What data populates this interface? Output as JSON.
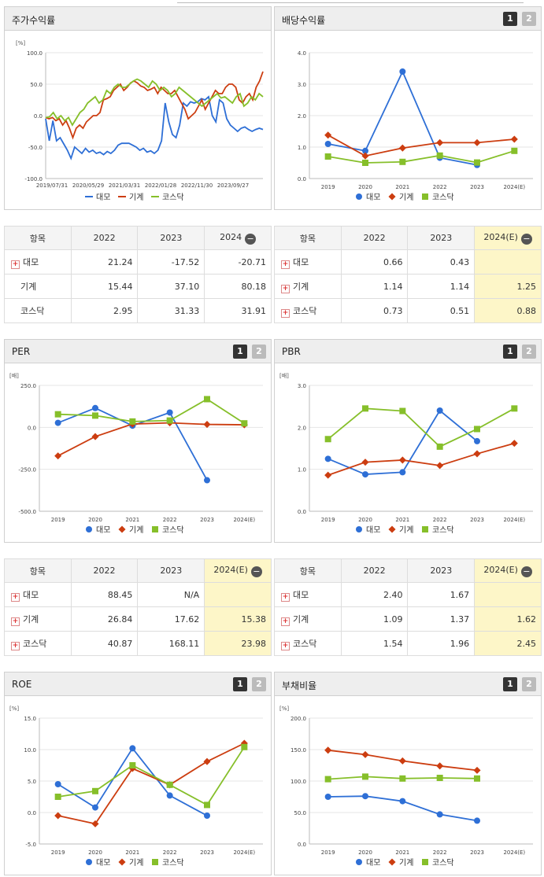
{
  "colors": {
    "series1": "#2e6fd6",
    "series2": "#cc3d10",
    "series3": "#86bf2a"
  },
  "legend": [
    "대모",
    "기계",
    "코스닥"
  ],
  "btns": {
    "b1": "1",
    "b2": "2"
  },
  "charts": [
    {
      "id": "stock",
      "title": "주가수익률",
      "unit": "[%]",
      "type": "line",
      "ticks": [
        "100.0",
        "50.0",
        "0.0",
        "-50.0",
        "-100.0"
      ],
      "ylim": [
        -100,
        100
      ],
      "xlabels": [
        "2019/07/31",
        "2020/05/29",
        "2021/03/31",
        "2022/01/28",
        "2022/11/30",
        "2023/09/27"
      ],
      "series": [
        {
          "name": "대모",
          "values": [
            -5,
            -40,
            -8,
            -40,
            -35,
            -45,
            -55,
            -68,
            -50,
            -55,
            -60,
            -52,
            -58,
            -55,
            -60,
            -58,
            -62,
            -57,
            -60,
            -55,
            -47,
            -44,
            -44,
            -44,
            -47,
            -50,
            -55,
            -52,
            -58,
            -56,
            -60,
            -55,
            -40,
            20,
            -10,
            -30,
            -35,
            -15,
            20,
            15,
            22,
            20,
            22,
            27,
            25,
            30,
            0,
            -10,
            25,
            20,
            -5,
            -15,
            -20,
            -25,
            -20,
            -18,
            -22,
            -25,
            -22,
            -20,
            -22
          ]
        },
        {
          "name": "기계",
          "values": [
            -3,
            -5,
            -3,
            -8,
            -5,
            -15,
            -8,
            -20,
            -35,
            -20,
            -15,
            -20,
            -10,
            -5,
            0,
            0,
            5,
            25,
            27,
            30,
            40,
            45,
            50,
            40,
            45,
            52,
            55,
            52,
            47,
            45,
            40,
            42,
            45,
            35,
            45,
            40,
            35,
            35,
            40,
            30,
            20,
            10,
            -5,
            0,
            5,
            15,
            25,
            10,
            20,
            30,
            40,
            35,
            35,
            45,
            50,
            50,
            45,
            25,
            20,
            30,
            35,
            25,
            45,
            55,
            70
          ]
        },
        {
          "name": "코스닥",
          "values": [
            -3,
            -2,
            5,
            -5,
            0,
            -8,
            -3,
            -15,
            -5,
            5,
            10,
            20,
            25,
            30,
            20,
            25,
            40,
            35,
            45,
            50,
            45,
            45,
            50,
            55,
            58,
            55,
            50,
            45,
            55,
            50,
            40,
            45,
            40,
            30,
            35,
            45,
            40,
            35,
            30,
            25,
            20,
            15,
            20,
            25,
            30,
            35,
            28,
            30,
            25,
            20,
            30,
            35,
            15,
            20,
            30,
            25,
            35,
            30
          ]
        }
      ]
    },
    {
      "id": "div",
      "title": "배당수익률",
      "unit": "",
      "type": "line",
      "ticks": [
        "4.0",
        "3.0",
        "2.0",
        "1.0",
        "0.0"
      ],
      "ylim": [
        0,
        4
      ],
      "categories": [
        "2019",
        "2020",
        "2021",
        "2022",
        "2023",
        "2024(E)"
      ],
      "series": [
        {
          "name": "대모",
          "values": [
            1.1,
            0.88,
            3.4,
            0.66,
            0.43,
            null
          ]
        },
        {
          "name": "기계",
          "values": [
            1.38,
            0.72,
            0.97,
            1.14,
            1.14,
            1.25
          ]
        },
        {
          "name": "코스닥",
          "values": [
            0.7,
            0.5,
            0.53,
            0.73,
            0.51,
            0.88
          ]
        }
      ]
    },
    {
      "id": "per",
      "title": "PER",
      "unit": "[배]",
      "type": "line",
      "ticks": [
        "250.0",
        "0.0",
        "-250.0",
        "-500.0"
      ],
      "ylim": [
        -500,
        250
      ],
      "categories": [
        "2019",
        "2020",
        "2021",
        "2022",
        "2023",
        "2024(E)"
      ],
      "series": [
        {
          "name": "대모",
          "values": [
            27,
            115,
            10,
            88.45,
            -315,
            null
          ]
        },
        {
          "name": "기계",
          "values": [
            -170,
            -55,
            20,
            26.84,
            17.62,
            15.38
          ]
        },
        {
          "name": "코스닥",
          "values": [
            78,
            70,
            35,
            40.87,
            168.11,
            23.98
          ]
        }
      ]
    },
    {
      "id": "pbr",
      "title": "PBR",
      "unit": "[배]",
      "type": "line",
      "ticks": [
        "3.0",
        "2.0",
        "1.0",
        "0.0"
      ],
      "ylim": [
        0,
        3
      ],
      "categories": [
        "2019",
        "2020",
        "2021",
        "2022",
        "2023",
        "2024(E)"
      ],
      "series": [
        {
          "name": "대모",
          "values": [
            1.25,
            0.88,
            0.93,
            2.4,
            1.67,
            null
          ]
        },
        {
          "name": "기계",
          "values": [
            0.86,
            1.17,
            1.22,
            1.09,
            1.37,
            1.62
          ]
        },
        {
          "name": "코스닥",
          "values": [
            1.72,
            2.45,
            2.39,
            1.54,
            1.96,
            2.45
          ]
        }
      ]
    },
    {
      "id": "roe",
      "title": "ROE",
      "unit": "[%]",
      "type": "line",
      "ticks": [
        "15.0",
        "10.0",
        "5.0",
        "0.0",
        "-5.0"
      ],
      "ylim": [
        -5,
        15
      ],
      "categories": [
        "2019",
        "2020",
        "2021",
        "2022",
        "2023",
        "2024(E)"
      ],
      "series": [
        {
          "name": "대모",
          "values": [
            4.5,
            0.8,
            10.2,
            2.7,
            -0.5,
            null
          ]
        },
        {
          "name": "기계",
          "values": [
            -0.5,
            -1.8,
            7.0,
            4.4,
            8.1,
            11.0
          ]
        },
        {
          "name": "코스닥",
          "values": [
            2.5,
            3.4,
            7.5,
            4.4,
            1.2,
            10.4
          ]
        }
      ]
    },
    {
      "id": "debt",
      "title": "부채비율",
      "unit": "[%]",
      "type": "line",
      "ticks": [
        "200.0",
        "150.0",
        "100.0",
        "50.0",
        "0.0"
      ],
      "ylim": [
        0,
        200
      ],
      "categories": [
        "2019",
        "2020",
        "2021",
        "2022",
        "2023",
        "2024(E)"
      ],
      "series": [
        {
          "name": "대모",
          "values": [
            75,
            76,
            68,
            47,
            37,
            null
          ]
        },
        {
          "name": "기계",
          "values": [
            149,
            142,
            132,
            124,
            117,
            null
          ]
        },
        {
          "name": "코스닥",
          "values": [
            103,
            107,
            104,
            105,
            104,
            null
          ]
        }
      ]
    }
  ],
  "tables": [
    {
      "head": [
        "항목",
        "2022",
        "2023",
        "2024"
      ],
      "estimated": false,
      "rows": [
        {
          "label": "대모",
          "plus": true,
          "vals": [
            "21.24",
            "-17.52",
            "-20.71"
          ]
        },
        {
          "label": "기계",
          "plus": false,
          "vals": [
            "15.44",
            "37.10",
            "80.18"
          ]
        },
        {
          "label": "코스닥",
          "plus": false,
          "vals": [
            "2.95",
            "31.33",
            "31.91"
          ]
        }
      ]
    },
    {
      "head": [
        "항목",
        "2022",
        "2023",
        "2024(E)"
      ],
      "estimated": true,
      "rows": [
        {
          "label": "대모",
          "plus": true,
          "vals": [
            "0.66",
            "0.43",
            ""
          ]
        },
        {
          "label": "기계",
          "plus": true,
          "vals": [
            "1.14",
            "1.14",
            "1.25"
          ]
        },
        {
          "label": "코스닥",
          "plus": true,
          "vals": [
            "0.73",
            "0.51",
            "0.88"
          ]
        }
      ]
    },
    {
      "head": [
        "항목",
        "2022",
        "2023",
        "2024(E)"
      ],
      "estimated": true,
      "rows": [
        {
          "label": "대모",
          "plus": true,
          "vals": [
            "88.45",
            "N/A",
            ""
          ]
        },
        {
          "label": "기계",
          "plus": true,
          "vals": [
            "26.84",
            "17.62",
            "15.38"
          ]
        },
        {
          "label": "코스닥",
          "plus": true,
          "vals": [
            "40.87",
            "168.11",
            "23.98"
          ]
        }
      ]
    },
    {
      "head": [
        "항목",
        "2022",
        "2023",
        "2024(E)"
      ],
      "estimated": true,
      "rows": [
        {
          "label": "대모",
          "plus": true,
          "vals": [
            "2.40",
            "1.67",
            ""
          ]
        },
        {
          "label": "기계",
          "plus": true,
          "vals": [
            "1.09",
            "1.37",
            "1.62"
          ]
        },
        {
          "label": "코스닥",
          "plus": true,
          "vals": [
            "1.54",
            "1.96",
            "2.45"
          ]
        }
      ]
    }
  ]
}
